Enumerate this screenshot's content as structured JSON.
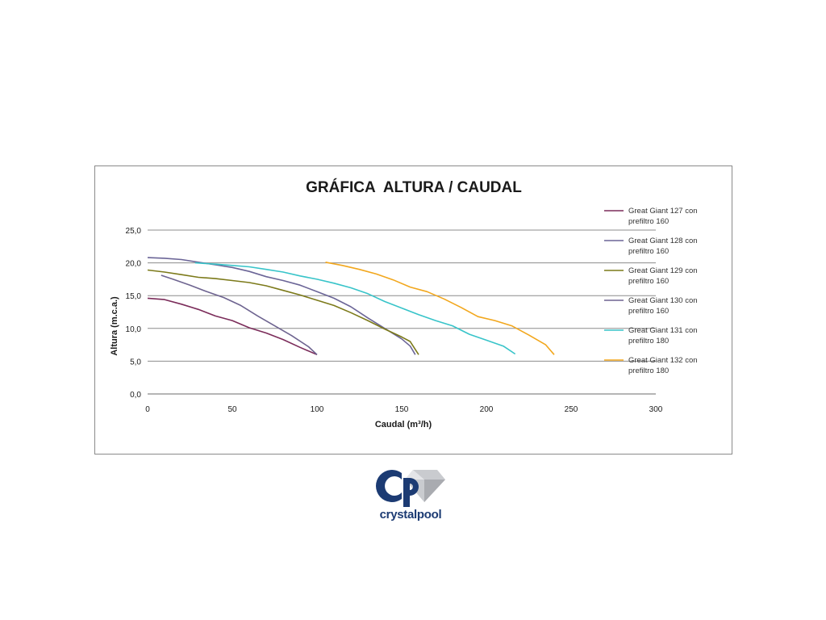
{
  "chart_data": {
    "type": "line",
    "title": "GRÁFICA  ALTURA / CAUDAL",
    "xlabel": "Caudal (m³/h)",
    "ylabel": "Altura (m.c.a.)",
    "xlim": [
      0,
      300
    ],
    "ylim": [
      0,
      25
    ],
    "xticks": [
      "0",
      "50",
      "100",
      "150",
      "200",
      "250",
      "300"
    ],
    "yticks": [
      "0,0",
      "5,0",
      "10,0",
      "15,0",
      "20,0",
      "25,0"
    ],
    "grid": "horizontal",
    "legend_position": "right",
    "series": [
      {
        "name": "Great Giant 127 con prefiltro 160",
        "legend_lines": [
          "Great Giant 127 con",
          "prefiltro 160"
        ],
        "color": "#7b2c5a",
        "points": [
          [
            0,
            14.6
          ],
          [
            10,
            14.4
          ],
          [
            20,
            13.7
          ],
          [
            30,
            12.9
          ],
          [
            40,
            11.9
          ],
          [
            50,
            11.2
          ],
          [
            60,
            10.1
          ],
          [
            70,
            9.3
          ],
          [
            80,
            8.3
          ],
          [
            90,
            7.1
          ],
          [
            100,
            6.0
          ]
        ]
      },
      {
        "name": "Great Giant 128 con prefiltro 160",
        "legend_lines": [
          "Great Giant 128 con",
          "prefiltro 160"
        ],
        "color": "#6b6597",
        "points": [
          [
            0,
            20.8
          ],
          [
            10,
            20.7
          ],
          [
            20,
            20.5
          ],
          [
            30,
            20.1
          ],
          [
            40,
            19.7
          ],
          [
            50,
            19.3
          ],
          [
            60,
            18.7
          ],
          [
            70,
            17.9
          ],
          [
            80,
            17.3
          ],
          [
            90,
            16.6
          ],
          [
            100,
            15.6
          ],
          [
            110,
            14.6
          ],
          [
            120,
            13.3
          ],
          [
            130,
            11.6
          ],
          [
            140,
            10.0
          ],
          [
            150,
            8.4
          ],
          [
            155,
            7.3
          ],
          [
            158,
            6.0
          ]
        ]
      },
      {
        "name": "Great Giant 129 con prefiltro 160",
        "legend_lines": [
          "Great Giant 129 con",
          "prefiltro 160"
        ],
        "color": "#7c7a1a",
        "points": [
          [
            0,
            18.9
          ],
          [
            10,
            18.6
          ],
          [
            20,
            18.2
          ],
          [
            30,
            17.8
          ],
          [
            40,
            17.6
          ],
          [
            50,
            17.3
          ],
          [
            60,
            17.0
          ],
          [
            70,
            16.5
          ],
          [
            80,
            15.8
          ],
          [
            90,
            15.1
          ],
          [
            100,
            14.3
          ],
          [
            110,
            13.5
          ],
          [
            120,
            12.4
          ],
          [
            130,
            11.2
          ],
          [
            140,
            9.9
          ],
          [
            150,
            8.7
          ],
          [
            155,
            8.0
          ],
          [
            160,
            6.0
          ]
        ]
      },
      {
        "name": "Great Giant 130 con prefiltro 160",
        "legend_lines": [
          "Great Giant 130 con",
          "prefiltro 160"
        ],
        "color": "#6e6490",
        "points": [
          [
            8,
            18.1
          ],
          [
            15,
            17.5
          ],
          [
            25,
            16.6
          ],
          [
            35,
            15.6
          ],
          [
            45,
            14.7
          ],
          [
            55,
            13.5
          ],
          [
            65,
            11.9
          ],
          [
            75,
            10.4
          ],
          [
            85,
            8.9
          ],
          [
            95,
            7.2
          ],
          [
            100,
            6.0
          ]
        ]
      },
      {
        "name": "Great Giant 131 con prefiltro 180",
        "legend_lines": [
          "Great Giant 131 con",
          "prefiltro 180"
        ],
        "color": "#38c4c9",
        "points": [
          [
            28,
            20.0
          ],
          [
            40,
            19.8
          ],
          [
            50,
            19.6
          ],
          [
            60,
            19.4
          ],
          [
            70,
            19.0
          ],
          [
            80,
            18.6
          ],
          [
            90,
            18.0
          ],
          [
            100,
            17.5
          ],
          [
            110,
            16.9
          ],
          [
            120,
            16.2
          ],
          [
            130,
            15.3
          ],
          [
            140,
            14.1
          ],
          [
            150,
            13.1
          ],
          [
            160,
            12.1
          ],
          [
            170,
            11.2
          ],
          [
            180,
            10.4
          ],
          [
            190,
            9.1
          ],
          [
            200,
            8.2
          ],
          [
            210,
            7.3
          ],
          [
            217,
            6.1
          ]
        ]
      },
      {
        "name": "Great Giant 132 con prefiltro 180",
        "legend_lines": [
          "Great Giant 132 con",
          "prefiltro 180"
        ],
        "color": "#f2a71d",
        "points": [
          [
            105,
            20.1
          ],
          [
            115,
            19.6
          ],
          [
            125,
            19.0
          ],
          [
            135,
            18.3
          ],
          [
            145,
            17.4
          ],
          [
            155,
            16.3
          ],
          [
            165,
            15.6
          ],
          [
            175,
            14.5
          ],
          [
            185,
            13.2
          ],
          [
            195,
            11.8
          ],
          [
            205,
            11.2
          ],
          [
            215,
            10.4
          ],
          [
            225,
            9.0
          ],
          [
            235,
            7.5
          ],
          [
            240,
            6.0
          ]
        ]
      }
    ]
  },
  "logo": {
    "wordmark": "crystalpool",
    "colors": {
      "primary": "#1c3b73",
      "diamond": "#bfc1c5"
    }
  }
}
